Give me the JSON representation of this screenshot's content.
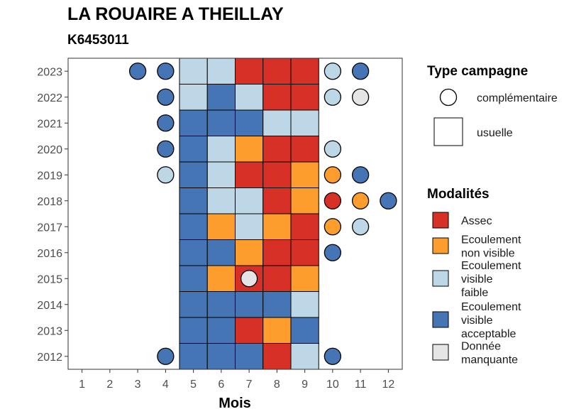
{
  "chart_data": {
    "type": "heatmap",
    "title": "LA ROUAIRE A THEILLAY",
    "subtitle": "K6453011",
    "xlabel": "Mois",
    "ylabel": "",
    "x_ticks": [
      "1",
      "2",
      "3",
      "4",
      "5",
      "6",
      "7",
      "8",
      "9",
      "10",
      "11",
      "12"
    ],
    "y_ticks": [
      "2012",
      "2013",
      "2014",
      "2015",
      "2016",
      "2017",
      "2018",
      "2019",
      "2020",
      "2021",
      "2022",
      "2023"
    ],
    "xlim": [
      0.5,
      12.5
    ],
    "ylim": [
      2011.5,
      2023.5
    ],
    "grid": false,
    "legend_position": "right",
    "categories": {
      "assec": {
        "label": "Assec",
        "color": "#d73027"
      },
      "nonvisible": {
        "label": "Ecoulement non visible",
        "color": "#fd9d2d"
      },
      "faible": {
        "label": "Ecoulement visible faible",
        "color": "#bdd7e7"
      },
      "acceptable": {
        "label": "Ecoulement visible acceptable",
        "color": "#4575b4"
      },
      "manquante": {
        "label": "Donnée manquante",
        "color": "#e5e5e5"
      }
    },
    "legend_shape": {
      "title": "Type campagne",
      "items": [
        {
          "label": "complémentaire",
          "shape": "circle"
        },
        {
          "label": "usuelle",
          "shape": "square"
        }
      ]
    },
    "legend_modalites": {
      "title": "Modalités",
      "items": [
        {
          "key": "assec",
          "lines": [
            "Assec"
          ]
        },
        {
          "key": "nonvisible",
          "lines": [
            "Ecoulement",
            "non visible"
          ]
        },
        {
          "key": "faible",
          "lines": [
            "Ecoulement",
            "visible",
            "faible"
          ]
        },
        {
          "key": "acceptable",
          "lines": [
            "Ecoulement",
            "visible",
            "acceptable"
          ]
        },
        {
          "key": "manquante",
          "lines": [
            "Donnée",
            "manquante"
          ]
        }
      ]
    },
    "usuelle": [
      {
        "year": 2023,
        "months": [
          "faible",
          "faible",
          "assec",
          "assec",
          "assec"
        ]
      },
      {
        "year": 2022,
        "months": [
          "faible",
          "acceptable",
          "faible",
          "assec",
          "assec"
        ]
      },
      {
        "year": 2021,
        "months": [
          "acceptable",
          "acceptable",
          "acceptable",
          "faible",
          "faible"
        ]
      },
      {
        "year": 2020,
        "months": [
          "acceptable",
          "faible",
          "nonvisible",
          "assec",
          "assec"
        ]
      },
      {
        "year": 2019,
        "months": [
          "acceptable",
          "faible",
          "assec",
          "assec",
          "nonvisible"
        ]
      },
      {
        "year": 2018,
        "months": [
          "acceptable",
          "faible",
          "faible",
          "assec",
          "nonvisible"
        ]
      },
      {
        "year": 2017,
        "months": [
          "acceptable",
          "nonvisible",
          "faible",
          "nonvisible",
          "assec"
        ]
      },
      {
        "year": 2016,
        "months": [
          "acceptable",
          "acceptable",
          "nonvisible",
          "assec",
          "assec"
        ]
      },
      {
        "year": 2015,
        "months": [
          "acceptable",
          "nonvisible",
          "assec",
          "assec",
          "nonvisible"
        ]
      },
      {
        "year": 2014,
        "months": [
          "acceptable",
          "acceptable",
          "acceptable",
          "acceptable",
          "faible"
        ]
      },
      {
        "year": 2013,
        "months": [
          "acceptable",
          "acceptable",
          "assec",
          "nonvisible",
          "acceptable"
        ]
      },
      {
        "year": 2012,
        "months": [
          "acceptable",
          "acceptable",
          "acceptable",
          "assec",
          "faible"
        ]
      }
    ],
    "usuelle_month_start": 5,
    "complementaire": [
      {
        "year": 2023,
        "month": 3,
        "value": "acceptable"
      },
      {
        "year": 2023,
        "month": 4,
        "value": "acceptable"
      },
      {
        "year": 2023,
        "month": 10,
        "value": "faible"
      },
      {
        "year": 2023,
        "month": 11,
        "value": "acceptable"
      },
      {
        "year": 2022,
        "month": 4,
        "value": "acceptable"
      },
      {
        "year": 2022,
        "month": 10,
        "value": "faible"
      },
      {
        "year": 2022,
        "month": 11,
        "value": "manquante"
      },
      {
        "year": 2021,
        "month": 4,
        "value": "acceptable"
      },
      {
        "year": 2020,
        "month": 4,
        "value": "acceptable"
      },
      {
        "year": 2020,
        "month": 10,
        "value": "faible"
      },
      {
        "year": 2019,
        "month": 4,
        "value": "faible"
      },
      {
        "year": 2019,
        "month": 10,
        "value": "nonvisible"
      },
      {
        "year": 2019,
        "month": 11,
        "value": "acceptable"
      },
      {
        "year": 2018,
        "month": 10,
        "value": "assec"
      },
      {
        "year": 2018,
        "month": 11,
        "value": "nonvisible"
      },
      {
        "year": 2018,
        "month": 12,
        "value": "acceptable"
      },
      {
        "year": 2017,
        "month": 10,
        "value": "nonvisible"
      },
      {
        "year": 2017,
        "month": 11,
        "value": "faible"
      },
      {
        "year": 2016,
        "month": 10,
        "value": "acceptable"
      },
      {
        "year": 2015,
        "month": 7,
        "value": "manquante"
      },
      {
        "year": 2012,
        "month": 4,
        "value": "acceptable"
      },
      {
        "year": 2012,
        "month": 10,
        "value": "acceptable"
      }
    ]
  }
}
